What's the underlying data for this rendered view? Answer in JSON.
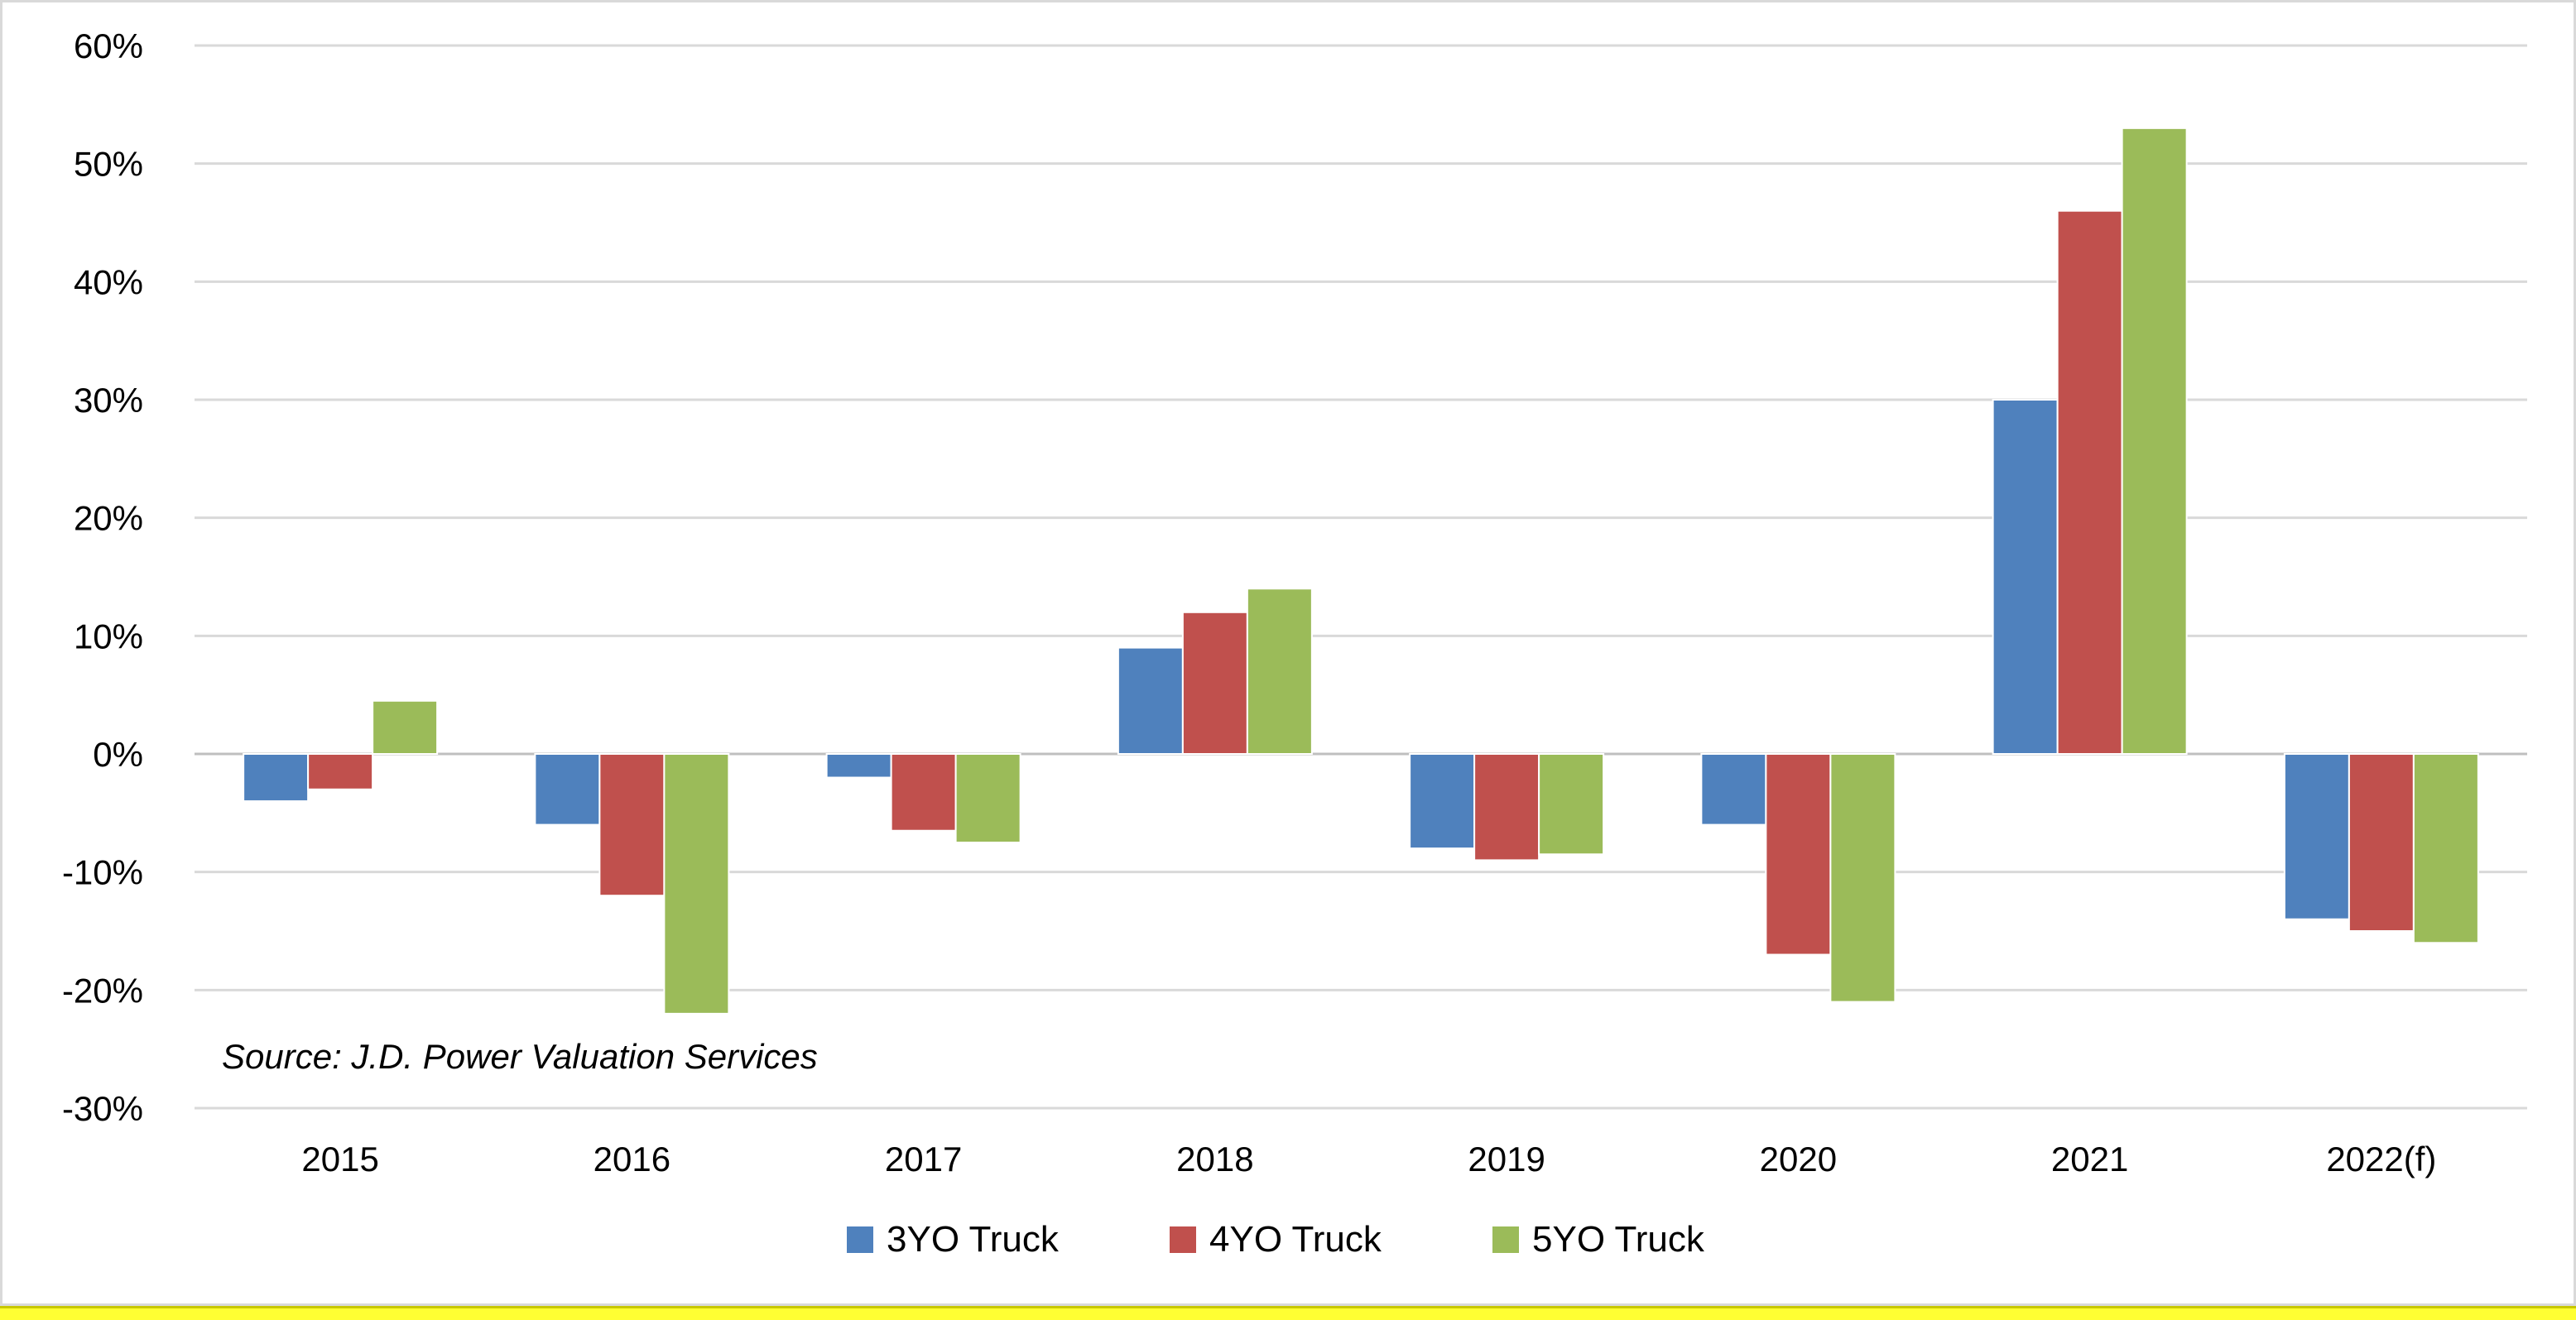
{
  "chart_data": {
    "type": "bar",
    "title": "",
    "xlabel": "",
    "ylabel": "",
    "categories": [
      "2015",
      "2016",
      "2017",
      "2018",
      "2019",
      "2020",
      "2021",
      "2022(f)"
    ],
    "series": [
      {
        "name": "3YO Truck",
        "color": "#4f81bd",
        "values": [
          -4,
          -6,
          -2,
          9,
          -8,
          -6,
          30,
          -14
        ]
      },
      {
        "name": "4YO Truck",
        "color": "#c0504d",
        "values": [
          -3,
          -12,
          -6.5,
          12,
          -9,
          -17,
          46,
          -15
        ]
      },
      {
        "name": "5YO Truck",
        "color": "#9bbb59",
        "values": [
          4.5,
          -22,
          -7.5,
          14,
          -8.5,
          -21,
          53,
          -16
        ]
      }
    ],
    "ylim": [
      -30,
      60
    ],
    "yticks": [
      60,
      50,
      40,
      30,
      20,
      10,
      0,
      -10,
      -20,
      -30
    ],
    "ytick_labels": [
      "60%",
      "50%",
      "40%",
      "30%",
      "20%",
      "10%",
      "0%",
      "-10%",
      "-20%",
      "-30%"
    ],
    "grid": true,
    "legend_position": "bottom",
    "annotation": "Source: J.D. Power Valuation Services"
  }
}
